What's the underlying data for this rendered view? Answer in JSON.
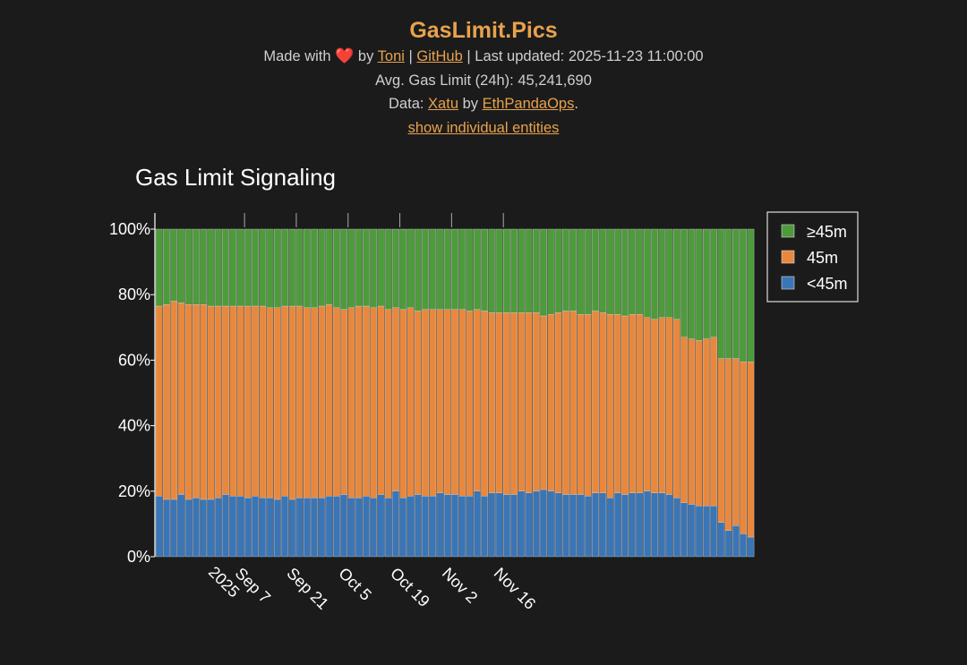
{
  "header": {
    "site_title": "GasLimit.Pics",
    "made_with": "Made with",
    "heart": "❤️",
    "by": "by",
    "author_link": "Toni",
    "sep1": "|",
    "github_link": "GitHub",
    "sep2": "|",
    "last_updated": "Last updated: 2025-11-23 11:00:00",
    "avg_gas_limit": "Avg. Gas Limit (24h): 45,241,690",
    "data_prefix": "Data:",
    "data_source_link": "Xatu",
    "data_by": "by",
    "data_org_link": "EthPandaOps",
    "data_suffix": ".",
    "show_entities_link": "show individual entities"
  },
  "chart_data": {
    "type": "bar",
    "stacked": true,
    "title": "Gas Limit Signaling",
    "x_start": "2025-08-26",
    "x_step_days": 1,
    "x_ticks": [
      "Sep 7\n2025",
      "Sep 21",
      "Oct 5",
      "Oct 19",
      "Nov 2",
      "Nov 16"
    ],
    "ylim": [
      0,
      100
    ],
    "y_ticks": [
      "0%",
      "20%",
      "40%",
      "60%",
      "80%",
      "100%"
    ],
    "y_tick_values": [
      0,
      20,
      40,
      60,
      80,
      100
    ],
    "legend_position": "top-right",
    "series": [
      {
        "name": "<45m",
        "color": "#3a75b6",
        "values": [
          18.5,
          17.5,
          17.5,
          19,
          17.5,
          18,
          17.5,
          17.5,
          18,
          19,
          18.5,
          18.5,
          18,
          18.5,
          18,
          18,
          17.5,
          18.5,
          17.5,
          18,
          18,
          18,
          18,
          18.5,
          18.5,
          19,
          18,
          18,
          18.5,
          18,
          19,
          18,
          20,
          18,
          18.5,
          19,
          18.5,
          18.5,
          19.5,
          19,
          19,
          18.5,
          18.5,
          20,
          18.5,
          19.5,
          19.5,
          19,
          19,
          20,
          19.5,
          20,
          20.5,
          20,
          19.5,
          19,
          19,
          19,
          18.5,
          19.5,
          19.5,
          18,
          19.5,
          19,
          19.5,
          19.5,
          20,
          19.5,
          19.5,
          19,
          18,
          16.5,
          16,
          15.5,
          15.5,
          15.5,
          10.5,
          8,
          9.5,
          7,
          6
        ]
      },
      {
        "name": "45m",
        "color": "#e9883c",
        "values": [
          58,
          59.5,
          60.5,
          58.5,
          59.5,
          59,
          59.5,
          59,
          58.5,
          57.5,
          58,
          58,
          58.5,
          58,
          58.5,
          58,
          58.5,
          58,
          59,
          58.5,
          58,
          58,
          58.5,
          58.5,
          57.5,
          56.5,
          58,
          58.5,
          58,
          58,
          57.5,
          57.5,
          56,
          57.5,
          57.5,
          56,
          57,
          57,
          56,
          56.5,
          56.5,
          57,
          56.5,
          55.5,
          56.5,
          55,
          55,
          55.5,
          55.5,
          54.5,
          55,
          54.5,
          53,
          54,
          55,
          56,
          56,
          55,
          55.5,
          55.5,
          55,
          56,
          54.5,
          54.5,
          54.5,
          54.5,
          53,
          53,
          53.5,
          54,
          54.5,
          50.5,
          50.5,
          50.5,
          51,
          51.5,
          50,
          52.5,
          51,
          52.5,
          53.5
        ]
      },
      {
        "name": "≥45m",
        "color": "#4d9b3b",
        "values": [
          23.5,
          23,
          22,
          22.5,
          23,
          23,
          23,
          23.5,
          23.5,
          23.5,
          23.5,
          23.5,
          23.5,
          23.5,
          23.5,
          24,
          24,
          23.5,
          23.5,
          23.5,
          24,
          24,
          23.5,
          23,
          24,
          24.5,
          24,
          23.5,
          23.5,
          24,
          23.5,
          24.5,
          24,
          24.5,
          24,
          25,
          24.5,
          24.5,
          24.5,
          24.5,
          24.5,
          24.5,
          25,
          24.5,
          25,
          25.5,
          25.5,
          25.5,
          25.5,
          25.5,
          25.5,
          25.5,
          26.5,
          26,
          25.5,
          25,
          25,
          26,
          26,
          25,
          25.5,
          26,
          26,
          26.5,
          26,
          26,
          27,
          27.5,
          27,
          27,
          27.5,
          33,
          33.5,
          34,
          33.5,
          33,
          39.5,
          39.5,
          39.5,
          40.5,
          40.5
        ]
      }
    ]
  }
}
